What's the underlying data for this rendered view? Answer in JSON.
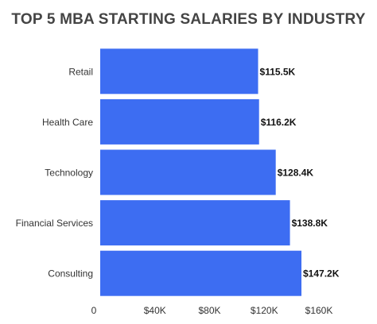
{
  "chart_data": {
    "type": "bar",
    "orientation": "horizontal",
    "title": "TOP 5 MBA STARTING SALARIES BY INDUSTRY",
    "xlabel": "",
    "ylabel": "",
    "categories": [
      "Retail",
      "Health Care",
      "Technology",
      "Financial Services",
      "Consulting"
    ],
    "values": [
      115.5,
      116.2,
      128.4,
      138.8,
      147.2
    ],
    "data_labels": [
      "$115.5K",
      "$116.2K",
      "$128.4K",
      "$138.8K",
      "$147.2K"
    ],
    "xlim": [
      0,
      160
    ],
    "xticks": [
      0,
      40,
      80,
      120,
      160
    ],
    "xtick_labels": [
      "0",
      "$40K",
      "$80K",
      "$120K",
      "$160K"
    ],
    "grid": false,
    "legend": "none",
    "bar_color": "#3d6df2",
    "title_color": "#444444",
    "label_color": "#333333"
  }
}
